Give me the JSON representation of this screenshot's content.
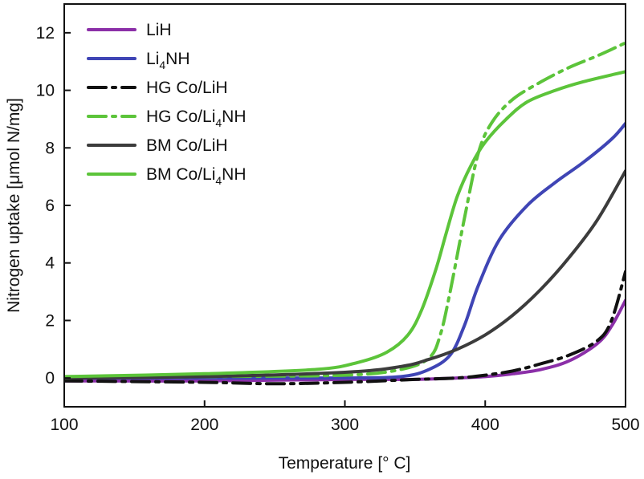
{
  "chart_data": {
    "type": "line",
    "xlabel": "Temperature [° C]",
    "ylabel": "Nitrogen uptake [μmol N/mg]",
    "xlim": [
      100,
      500
    ],
    "ylim": [
      -1,
      13
    ],
    "xticks": [
      100,
      200,
      300,
      400,
      500
    ],
    "yticks": [
      0,
      2,
      4,
      6,
      8,
      10,
      12
    ],
    "grid": false,
    "legend_position": "top-left",
    "series": [
      {
        "name": "LiH",
        "label_main": "LiH",
        "label_sub": "",
        "label_tail": "",
        "color": "#8B2FA8",
        "dash": "solid",
        "x": [
          100,
          200,
          300,
          350,
          380,
          400,
          420,
          440,
          460,
          480,
          490,
          500
        ],
        "y": [
          -0.1,
          -0.1,
          -0.05,
          -0.05,
          0.0,
          0.05,
          0.15,
          0.3,
          0.6,
          1.2,
          1.8,
          2.7
        ]
      },
      {
        "name": "Li4NH",
        "label_main": "Li",
        "label_sub": "4",
        "label_tail": "NH",
        "color": "#3F45B5",
        "dash": "solid",
        "x": [
          100,
          200,
          300,
          340,
          360,
          375,
          385,
          395,
          410,
          430,
          450,
          470,
          490,
          500
        ],
        "y": [
          0.0,
          0.0,
          0.0,
          0.05,
          0.3,
          0.8,
          1.8,
          3.2,
          4.8,
          6.0,
          6.8,
          7.5,
          8.3,
          8.85
        ]
      },
      {
        "name": "HG Co/LiH",
        "label_main": "HG Co/LiH",
        "label_sub": "",
        "label_tail": "",
        "color": "#111111",
        "dash": "dashdot",
        "x": [
          100,
          200,
          250,
          300,
          350,
          380,
          400,
          420,
          440,
          460,
          480,
          490,
          500
        ],
        "y": [
          -0.1,
          -0.15,
          -0.2,
          -0.15,
          -0.05,
          0.0,
          0.1,
          0.25,
          0.5,
          0.8,
          1.3,
          2.0,
          3.7
        ]
      },
      {
        "name": "HG Co/Li4NH",
        "label_main": "HG Co/Li",
        "label_sub": "4",
        "label_tail": "NH",
        "color": "#5CC43A",
        "dash": "dashdot",
        "x": [
          100,
          200,
          300,
          340,
          360,
          368,
          375,
          385,
          395,
          405,
          420,
          440,
          460,
          480,
          500
        ],
        "y": [
          0.0,
          0.05,
          0.1,
          0.3,
          0.7,
          1.5,
          3.0,
          5.5,
          7.8,
          8.9,
          9.7,
          10.3,
          10.8,
          11.2,
          11.65
        ]
      },
      {
        "name": "BM Co/LiH",
        "label_main": "BM Co/LiH",
        "label_sub": "",
        "label_tail": "",
        "color": "#3C3C3C",
        "dash": "solid",
        "x": [
          100,
          200,
          300,
          340,
          360,
          380,
          400,
          420,
          440,
          460,
          480,
          500
        ],
        "y": [
          0.0,
          0.05,
          0.2,
          0.4,
          0.65,
          1.0,
          1.5,
          2.2,
          3.1,
          4.2,
          5.5,
          7.2
        ]
      },
      {
        "name": "BM Co/Li4NH",
        "label_main": "BM Co/Li",
        "label_sub": "4",
        "label_tail": "NH",
        "color": "#5CC43A",
        "dash": "solid",
        "x": [
          100,
          200,
          280,
          310,
          330,
          345,
          355,
          365,
          372,
          380,
          390,
          400,
          415,
          430,
          450,
          470,
          500
        ],
        "y": [
          0.05,
          0.15,
          0.3,
          0.55,
          0.9,
          1.5,
          2.4,
          3.8,
          5.0,
          6.3,
          7.4,
          8.2,
          9.0,
          9.6,
          10.0,
          10.3,
          10.65
        ]
      }
    ]
  }
}
